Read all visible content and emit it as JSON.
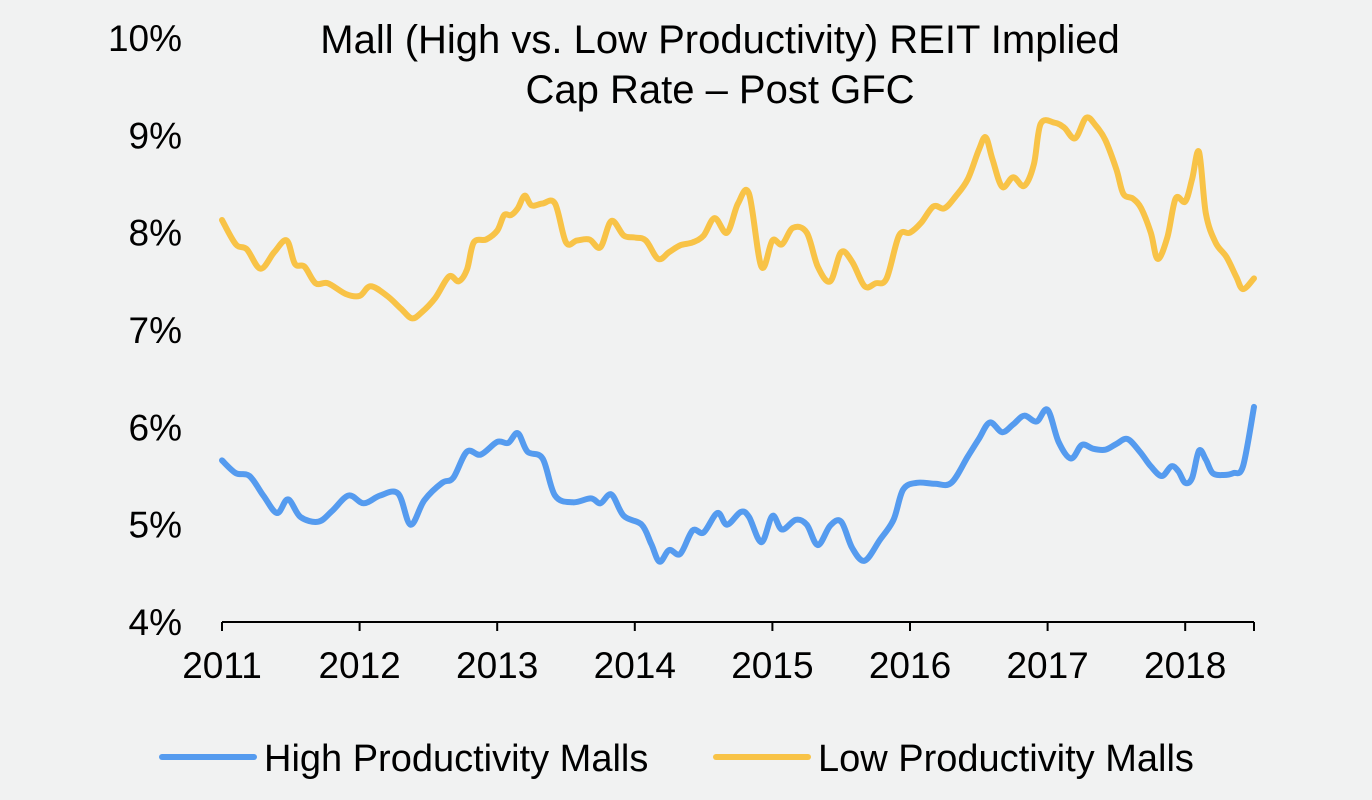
{
  "chart_data": {
    "type": "line",
    "title_lines": [
      "Mall (High vs. Low Productivity) REIT Implied",
      "Cap Rate – Post GFC"
    ],
    "ylim": [
      0.04,
      0.1
    ],
    "yticks": [
      0.04,
      0.05,
      0.06,
      0.07,
      0.08,
      0.09,
      0.1
    ],
    "ytick_labels": [
      "4%",
      "5%",
      "6%",
      "7%",
      "8%",
      "9%",
      "10%"
    ],
    "xlim": [
      2011.0,
      2018.5
    ],
    "xticks": [
      2011,
      2012,
      2013,
      2014,
      2015,
      2016,
      2017,
      2018
    ],
    "xtick_labels": [
      "2011",
      "2012",
      "2013",
      "2014",
      "2015",
      "2016",
      "2017",
      "2018"
    ],
    "grid": false,
    "legend_position": "bottom",
    "series": [
      {
        "name": "High Productivity Malls",
        "color": "#559bef",
        "points": [
          [
            2011.0,
            0.0566
          ],
          [
            2011.1,
            0.0553
          ],
          [
            2011.2,
            0.055
          ],
          [
            2011.3,
            0.053
          ],
          [
            2011.4,
            0.0512
          ],
          [
            2011.48,
            0.0526
          ],
          [
            2011.57,
            0.0508
          ],
          [
            2011.7,
            0.0503
          ],
          [
            2011.8,
            0.0514
          ],
          [
            2011.92,
            0.053
          ],
          [
            2012.03,
            0.0522
          ],
          [
            2012.15,
            0.053
          ],
          [
            2012.28,
            0.0532
          ],
          [
            2012.37,
            0.05
          ],
          [
            2012.47,
            0.0525
          ],
          [
            2012.6,
            0.0543
          ],
          [
            2012.68,
            0.0548
          ],
          [
            2012.78,
            0.0575
          ],
          [
            2012.88,
            0.0572
          ],
          [
            2013.0,
            0.0585
          ],
          [
            2013.08,
            0.0584
          ],
          [
            2013.15,
            0.0594
          ],
          [
            2013.22,
            0.0575
          ],
          [
            2013.33,
            0.0568
          ],
          [
            2013.42,
            0.053
          ],
          [
            2013.55,
            0.0523
          ],
          [
            2013.68,
            0.0527
          ],
          [
            2013.75,
            0.0522
          ],
          [
            2013.83,
            0.0531
          ],
          [
            2013.92,
            0.0509
          ],
          [
            2014.05,
            0.05
          ],
          [
            2014.12,
            0.048
          ],
          [
            2014.18,
            0.0462
          ],
          [
            2014.25,
            0.0474
          ],
          [
            2014.33,
            0.047
          ],
          [
            2014.42,
            0.0494
          ],
          [
            2014.5,
            0.0492
          ],
          [
            2014.6,
            0.0512
          ],
          [
            2014.67,
            0.05
          ],
          [
            2014.77,
            0.0513
          ],
          [
            2014.83,
            0.0508
          ],
          [
            2014.92,
            0.0482
          ],
          [
            2015.0,
            0.0509
          ],
          [
            2015.07,
            0.0495
          ],
          [
            2015.17,
            0.0505
          ],
          [
            2015.25,
            0.05
          ],
          [
            2015.33,
            0.0479
          ],
          [
            2015.42,
            0.0499
          ],
          [
            2015.5,
            0.0503
          ],
          [
            2015.58,
            0.0476
          ],
          [
            2015.67,
            0.0463
          ],
          [
            2015.78,
            0.0484
          ],
          [
            2015.88,
            0.0505
          ],
          [
            2015.95,
            0.0536
          ],
          [
            2016.05,
            0.0543
          ],
          [
            2016.18,
            0.0542
          ],
          [
            2016.3,
            0.0543
          ],
          [
            2016.42,
            0.057
          ],
          [
            2016.5,
            0.0588
          ],
          [
            2016.58,
            0.0605
          ],
          [
            2016.67,
            0.0595
          ],
          [
            2016.75,
            0.0603
          ],
          [
            2016.83,
            0.0612
          ],
          [
            2016.92,
            0.0606
          ],
          [
            2017.0,
            0.0618
          ],
          [
            2017.08,
            0.0585
          ],
          [
            2017.17,
            0.0568
          ],
          [
            2017.25,
            0.0582
          ],
          [
            2017.33,
            0.0578
          ],
          [
            2017.42,
            0.0577
          ],
          [
            2017.5,
            0.0583
          ],
          [
            2017.58,
            0.0588
          ],
          [
            2017.67,
            0.0575
          ],
          [
            2017.75,
            0.056
          ],
          [
            2017.83,
            0.055
          ],
          [
            2017.9,
            0.056
          ],
          [
            2017.95,
            0.0555
          ],
          [
            2018.0,
            0.0543
          ],
          [
            2018.05,
            0.0548
          ],
          [
            2018.1,
            0.0576
          ],
          [
            2018.15,
            0.0567
          ],
          [
            2018.2,
            0.0553
          ],
          [
            2018.28,
            0.0551
          ],
          [
            2018.35,
            0.0553
          ],
          [
            2018.42,
            0.056
          ],
          [
            2018.5,
            0.0621
          ]
        ]
      },
      {
        "name": "Low Productivity Malls",
        "color": "#f8c347",
        "points": [
          [
            2011.0,
            0.0813
          ],
          [
            2011.1,
            0.0788
          ],
          [
            2011.18,
            0.0783
          ],
          [
            2011.28,
            0.0763
          ],
          [
            2011.38,
            0.078
          ],
          [
            2011.47,
            0.0792
          ],
          [
            2011.53,
            0.0768
          ],
          [
            2011.6,
            0.0765
          ],
          [
            2011.68,
            0.0748
          ],
          [
            2011.77,
            0.0748
          ],
          [
            2011.9,
            0.0737
          ],
          [
            2012.0,
            0.0735
          ],
          [
            2012.08,
            0.0745
          ],
          [
            2012.2,
            0.0735
          ],
          [
            2012.3,
            0.0722
          ],
          [
            2012.38,
            0.0712
          ],
          [
            2012.45,
            0.0718
          ],
          [
            2012.55,
            0.0733
          ],
          [
            2012.65,
            0.0755
          ],
          [
            2012.72,
            0.075
          ],
          [
            2012.78,
            0.0762
          ],
          [
            2012.83,
            0.079
          ],
          [
            2012.92,
            0.0793
          ],
          [
            2013.0,
            0.0802
          ],
          [
            2013.05,
            0.0818
          ],
          [
            2013.1,
            0.0818
          ],
          [
            2013.15,
            0.0825
          ],
          [
            2013.2,
            0.0838
          ],
          [
            2013.25,
            0.0828
          ],
          [
            2013.33,
            0.083
          ],
          [
            2013.42,
            0.083
          ],
          [
            2013.5,
            0.079
          ],
          [
            2013.58,
            0.0792
          ],
          [
            2013.67,
            0.0793
          ],
          [
            2013.75,
            0.0785
          ],
          [
            2013.83,
            0.0812
          ],
          [
            2013.92,
            0.0797
          ],
          [
            2014.0,
            0.0795
          ],
          [
            2014.08,
            0.0792
          ],
          [
            2014.17,
            0.0773
          ],
          [
            2014.25,
            0.078
          ],
          [
            2014.33,
            0.0787
          ],
          [
            2014.42,
            0.079
          ],
          [
            2014.5,
            0.0797
          ],
          [
            2014.58,
            0.0815
          ],
          [
            2014.67,
            0.08
          ],
          [
            2014.75,
            0.083
          ],
          [
            2014.83,
            0.084
          ],
          [
            2014.92,
            0.0765
          ],
          [
            2015.0,
            0.0792
          ],
          [
            2015.07,
            0.0788
          ],
          [
            2015.15,
            0.0805
          ],
          [
            2015.25,
            0.08
          ],
          [
            2015.33,
            0.0765
          ],
          [
            2015.42,
            0.075
          ],
          [
            2015.5,
            0.078
          ],
          [
            2015.58,
            0.077
          ],
          [
            2015.67,
            0.0745
          ],
          [
            2015.75,
            0.0748
          ],
          [
            2015.83,
            0.0753
          ],
          [
            2015.92,
            0.0797
          ],
          [
            2016.0,
            0.08
          ],
          [
            2016.08,
            0.081
          ],
          [
            2016.17,
            0.0827
          ],
          [
            2016.25,
            0.0825
          ],
          [
            2016.33,
            0.0837
          ],
          [
            2016.42,
            0.0855
          ],
          [
            2016.5,
            0.0885
          ],
          [
            2016.55,
            0.0898
          ],
          [
            2016.6,
            0.0875
          ],
          [
            2016.67,
            0.0847
          ],
          [
            2016.75,
            0.0857
          ],
          [
            2016.83,
            0.0848
          ],
          [
            2016.9,
            0.087
          ],
          [
            2016.95,
            0.0912
          ],
          [
            2017.05,
            0.0913
          ],
          [
            2017.12,
            0.0908
          ],
          [
            2017.2,
            0.0897
          ],
          [
            2017.28,
            0.0918
          ],
          [
            2017.35,
            0.091
          ],
          [
            2017.42,
            0.0895
          ],
          [
            2017.5,
            0.0865
          ],
          [
            2017.55,
            0.084
          ],
          [
            2017.62,
            0.0835
          ],
          [
            2017.68,
            0.0825
          ],
          [
            2017.75,
            0.08
          ],
          [
            2017.8,
            0.0773
          ],
          [
            2017.87,
            0.0795
          ],
          [
            2017.93,
            0.0835
          ],
          [
            2018.0,
            0.0832
          ],
          [
            2018.05,
            0.0855
          ],
          [
            2018.1,
            0.0883
          ],
          [
            2018.15,
            0.082
          ],
          [
            2018.22,
            0.079
          ],
          [
            2018.3,
            0.0775
          ],
          [
            2018.37,
            0.0755
          ],
          [
            2018.42,
            0.0742
          ],
          [
            2018.5,
            0.0753
          ]
        ]
      }
    ]
  }
}
